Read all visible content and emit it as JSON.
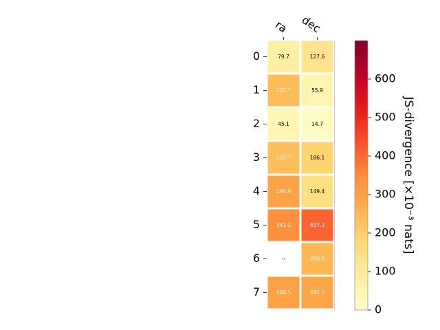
{
  "chart_data": {
    "type": "heatmap",
    "x_categories": [
      "ra",
      "dec"
    ],
    "y_categories": [
      "0",
      "1",
      "2",
      "3",
      "4",
      "5",
      "6",
      "7"
    ],
    "values": [
      [
        79.7,
        127.6
      ],
      [
        237.7,
        55.9
      ],
      [
        45.1,
        14.7
      ],
      [
        233.7,
        186.1
      ],
      [
        294.9,
        149.4
      ],
      [
        341.2,
        407.2
      ],
      [
        null,
        250.8
      ],
      [
        300.5,
        291.5
      ]
    ],
    "cell_labels": [
      [
        "79.7",
        "127.6"
      ],
      [
        "237.7",
        "55.9"
      ],
      [
        "45.1",
        "14.7"
      ],
      [
        "233.7",
        "186.1"
      ],
      [
        "294.9",
        "149.4"
      ],
      [
        "341.2",
        "407.2"
      ],
      [
        "--",
        "250.8"
      ],
      [
        "300.5",
        "291.5"
      ]
    ],
    "colorbar": {
      "label": "JS-divergence [×10⁻³ nats]",
      "range": [
        0,
        700
      ],
      "ticks": [
        "0",
        "100",
        "200",
        "300",
        "400",
        "500",
        "600"
      ],
      "colormap": "YlOrRd",
      "light_label_threshold": 200
    }
  }
}
